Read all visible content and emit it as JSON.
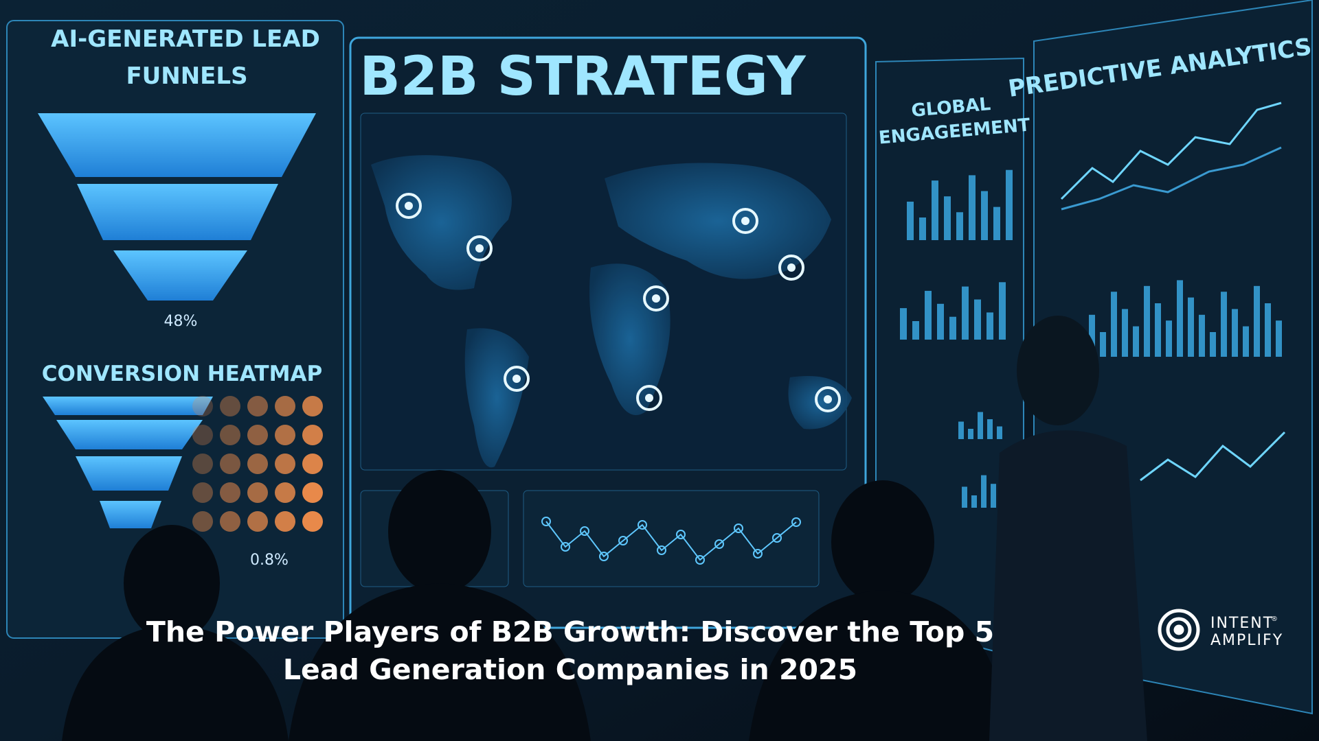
{
  "panels": {
    "funnels": {
      "title_line1": "AI-GENERATED LEAD",
      "title_line2": "FUNNELS",
      "percent": "48%"
    },
    "heatmap": {
      "title": "CONVERSION HEATMAP",
      "percent": "0.8%"
    },
    "center": {
      "title": "B2B STRATEGY"
    },
    "engagement": {
      "title_line1": "GLOBAL",
      "title_line2": "ENGAGEEMENT"
    },
    "analytics": {
      "title": "PREDICTIVE ANALYTICS"
    }
  },
  "headline": {
    "line1": "The Power Players of B2B Growth: Discover the Top 5",
    "line2": "Lead Generation Companies in 2025"
  },
  "logo": {
    "line1": "INTENT",
    "line2": "AMPLIFY",
    "mark": "®"
  }
}
